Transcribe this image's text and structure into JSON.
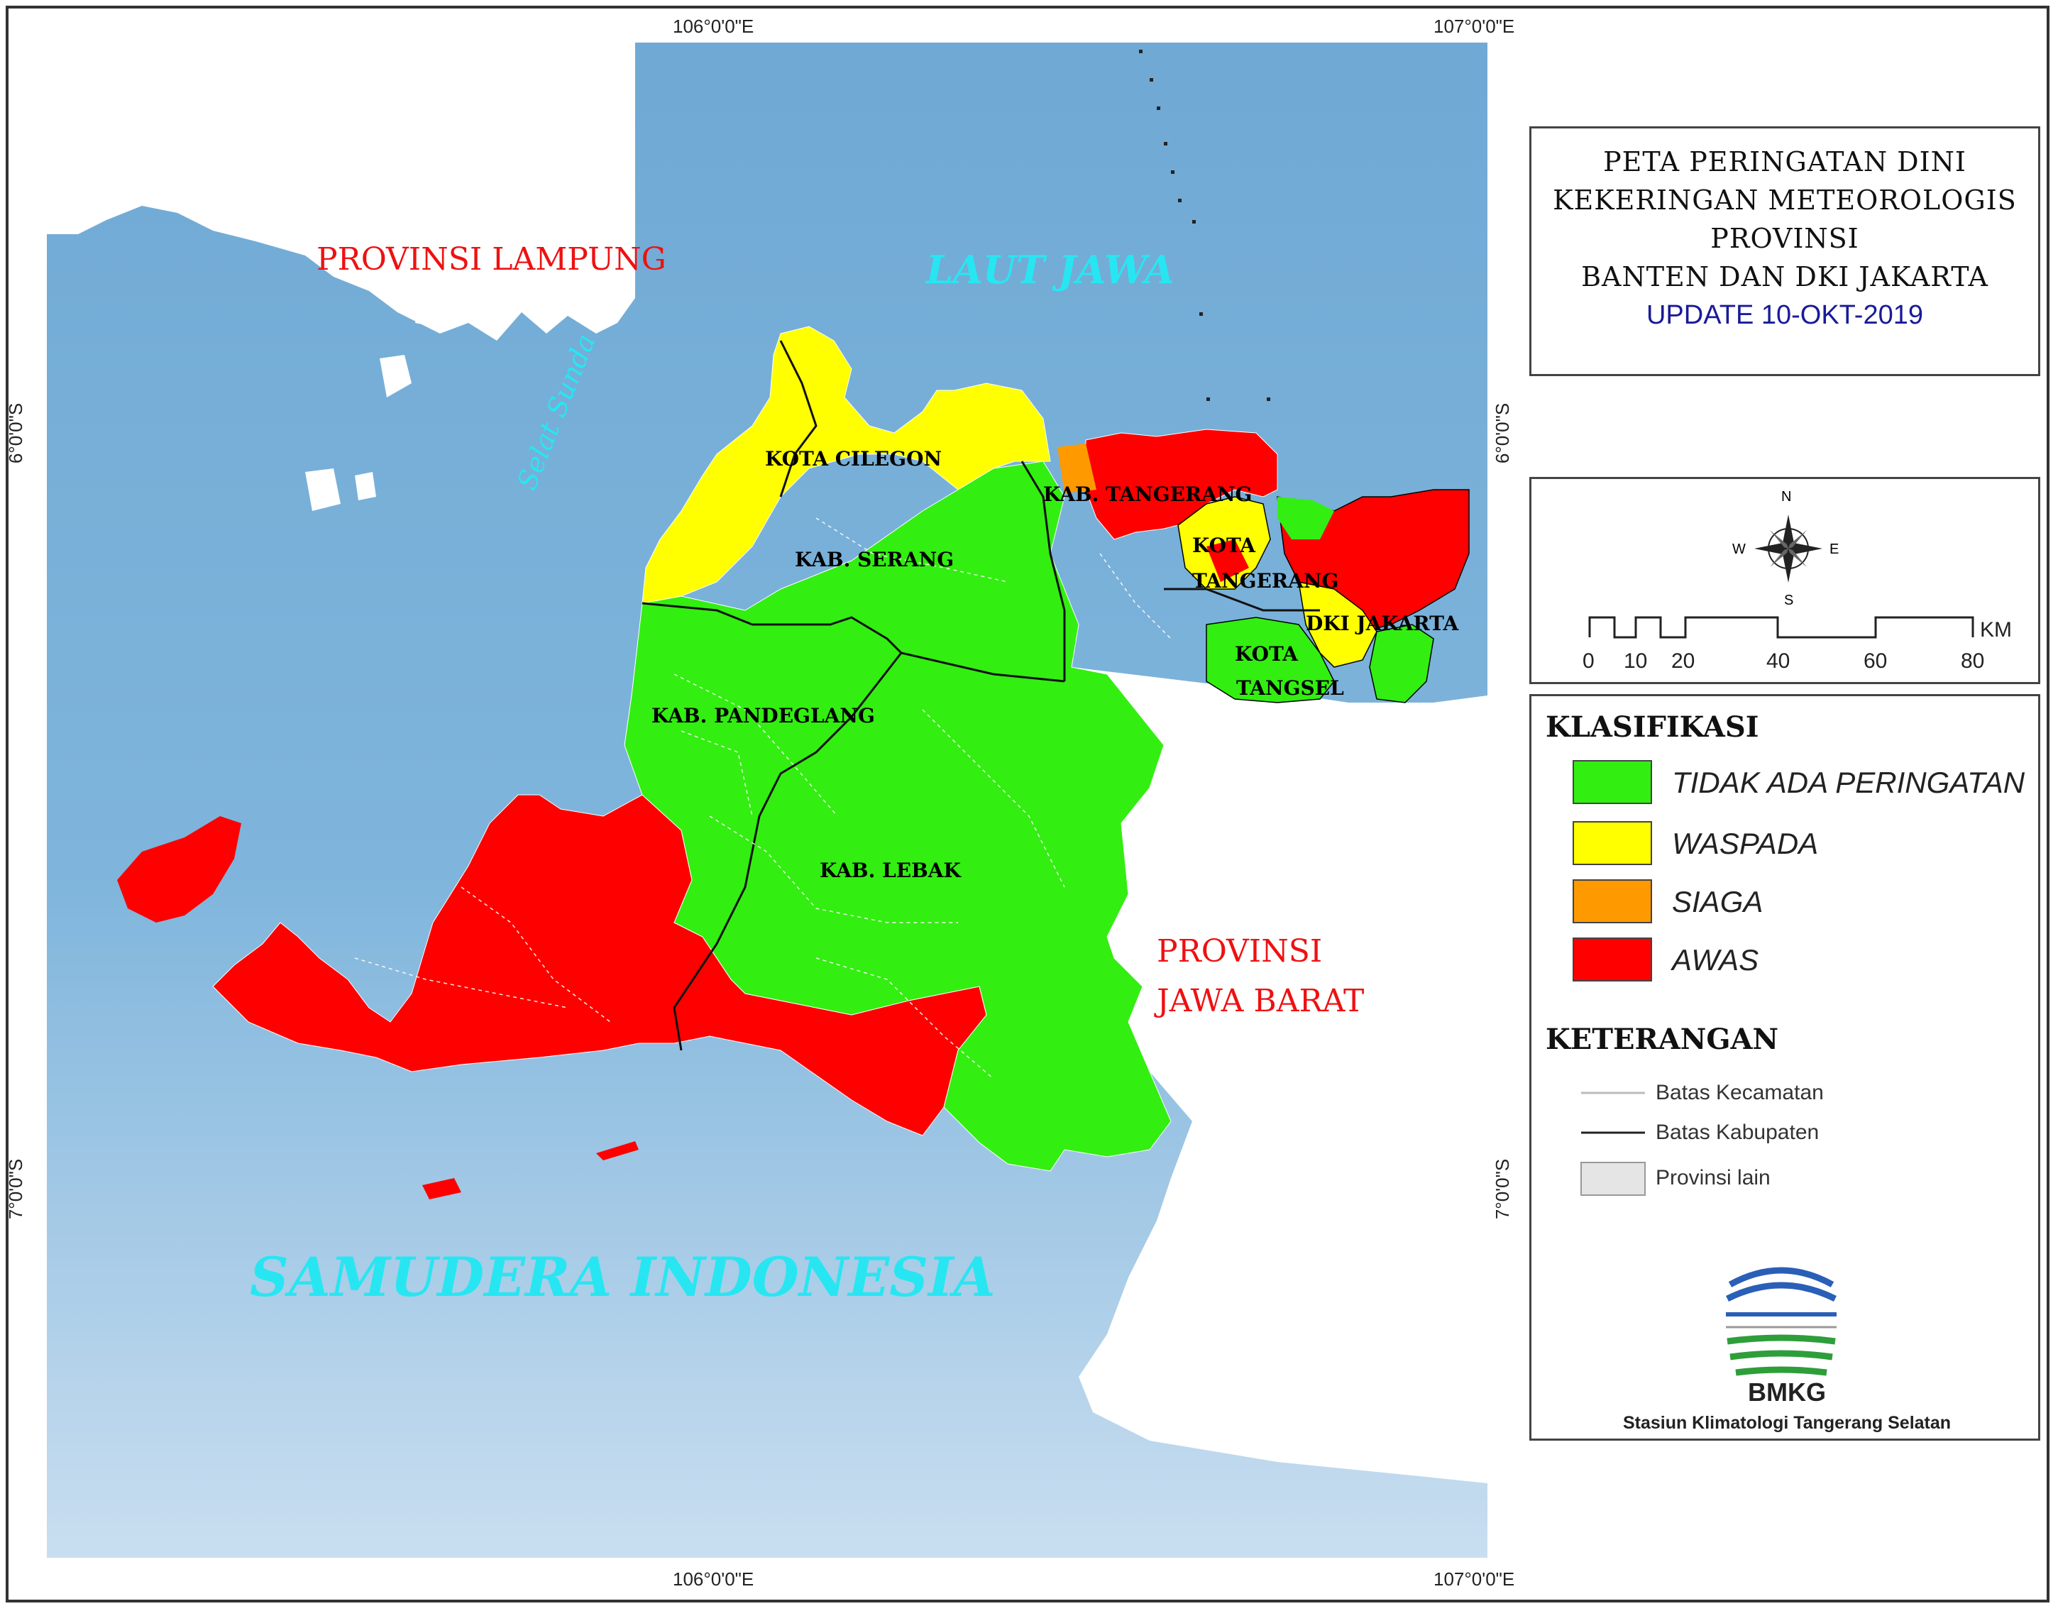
{
  "title": {
    "lines": [
      "PETA PERINGATAN DINI",
      "KEKERINGAN METEOROLOGIS",
      "PROVINSI",
      "BANTEN DAN DKI JAKARTA"
    ],
    "update": "UPDATE 10-OKT-2019"
  },
  "graticule": {
    "lon_labels": [
      "106°0'0\"E",
      "107°0'0\"E"
    ],
    "lat_labels": [
      "6°0'0\"S",
      "7°0'0\"S"
    ]
  },
  "compass": {
    "n": "N",
    "s": "S",
    "e": "E",
    "w": "W"
  },
  "scale": {
    "ticks": [
      "0",
      "10",
      "20",
      "40",
      "60",
      "80"
    ],
    "unit": "KM"
  },
  "legend": {
    "klasifikasi_title": "KLASIFIKASI",
    "classes": [
      {
        "label": "TIDAK ADA PERINGATAN",
        "color": "#33ee11"
      },
      {
        "label": "WASPADA",
        "color": "#ffff00"
      },
      {
        "label": "SIAGA",
        "color": "#ff9900"
      },
      {
        "label": "AWAS",
        "color": "#ff0000"
      }
    ],
    "keterangan_title": "KETERANGAN",
    "keterangan": [
      "Batas Kecamatan",
      "Batas Kabupaten",
      "Provinsi lain"
    ]
  },
  "agency": {
    "name": "BMKG",
    "station": "Stasiun Klimatologi Tangerang Selatan"
  },
  "region_labels": {
    "kota_cilegon": "KOTA CILEGON",
    "kab_serang": "KAB.  SERANG",
    "kab_tangerang": "KAB. TANGERANG",
    "kota_tangerang_1": "KOTA",
    "kota_tangerang_2": "TANGERANG",
    "dki_jakarta": "DKI JAKARTA",
    "kota_tangsel_1": "KOTA",
    "kota_tangsel_2": "TANGSEL",
    "kab_pandeglang": "KAB.  PANDEGLANG",
    "kab_lebak": "KAB.  LEBAK"
  },
  "area_labels": {
    "lampung": "PROVINSI LAMPUNG",
    "laut_jawa": "LAUT JAWA",
    "selat_sunda": "Selat Sunda",
    "jabar_1": "PROVINSI",
    "jabar_2": "JAWA BARAT",
    "samudera": "SAMUDERA INDONESIA"
  },
  "colors": {
    "sea": "#74aed6",
    "sea_deep": "#bcd6ee",
    "land_other": "#ffffff",
    "green": "#33ee11",
    "yellow": "#ffff00",
    "orange": "#ff9900",
    "red": "#ff0000"
  }
}
